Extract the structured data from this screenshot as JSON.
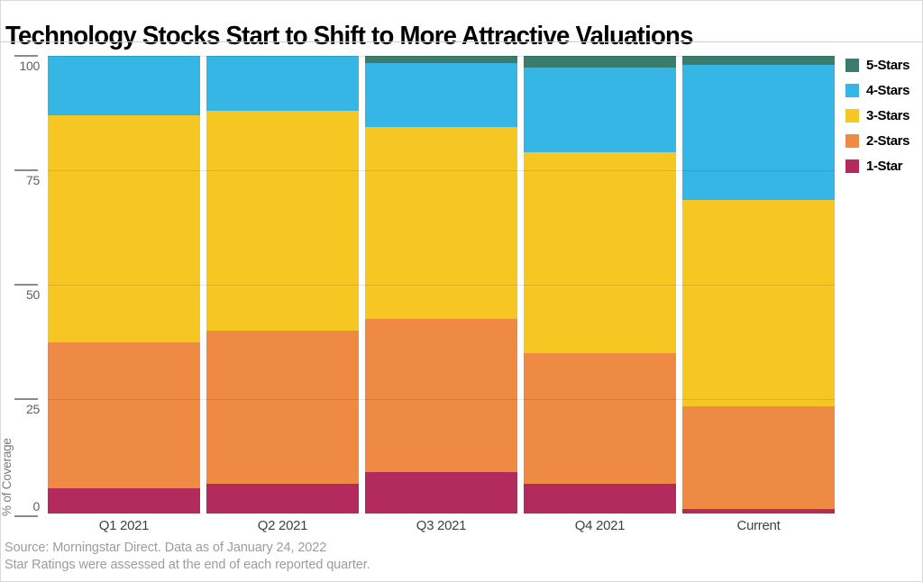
{
  "page": {
    "title": "Technology Stocks Start to Shift to More Attractive Valuations",
    "footer_line1": "Source: Morningstar Direct. Data as of January 24, 2022",
    "footer_line2": "Star Ratings were assessed at the end of each reported quarter."
  },
  "chart_data": {
    "type": "bar",
    "stacked": true,
    "title": "Technology Stocks Start to Shift to More Attractive Valuations",
    "xlabel": "",
    "ylabel": "% of Coverage",
    "ylim": [
      0,
      100
    ],
    "yticks": [
      0,
      25,
      50,
      75,
      100
    ],
    "grid": true,
    "legend_position": "top-right",
    "categories": [
      "Q1 2021",
      "Q2 2021",
      "Q3 2021",
      "Q4 2021",
      "Current"
    ],
    "series": [
      {
        "name": "1-Star",
        "color": "#b32b5c",
        "values": [
          5.5,
          6.5,
          9,
          6.5,
          1
        ]
      },
      {
        "name": "2-Stars",
        "color": "#ef8a45",
        "values": [
          32,
          33.5,
          33.5,
          28.5,
          22.5
        ]
      },
      {
        "name": "3-Stars",
        "color": "#f6c623",
        "values": [
          49.5,
          48,
          42,
          44,
          45
        ]
      },
      {
        "name": "4-Stars",
        "color": "#36b6e4",
        "values": [
          13,
          12,
          14,
          18.5,
          29.5
        ]
      },
      {
        "name": "5-Stars",
        "color": "#3a7d6e",
        "values": [
          0,
          0,
          1.5,
          2.5,
          2
        ]
      }
    ],
    "legend_order": [
      "5-Stars",
      "4-Stars",
      "3-Stars",
      "2-Stars",
      "1-Star"
    ],
    "units": "percent"
  }
}
